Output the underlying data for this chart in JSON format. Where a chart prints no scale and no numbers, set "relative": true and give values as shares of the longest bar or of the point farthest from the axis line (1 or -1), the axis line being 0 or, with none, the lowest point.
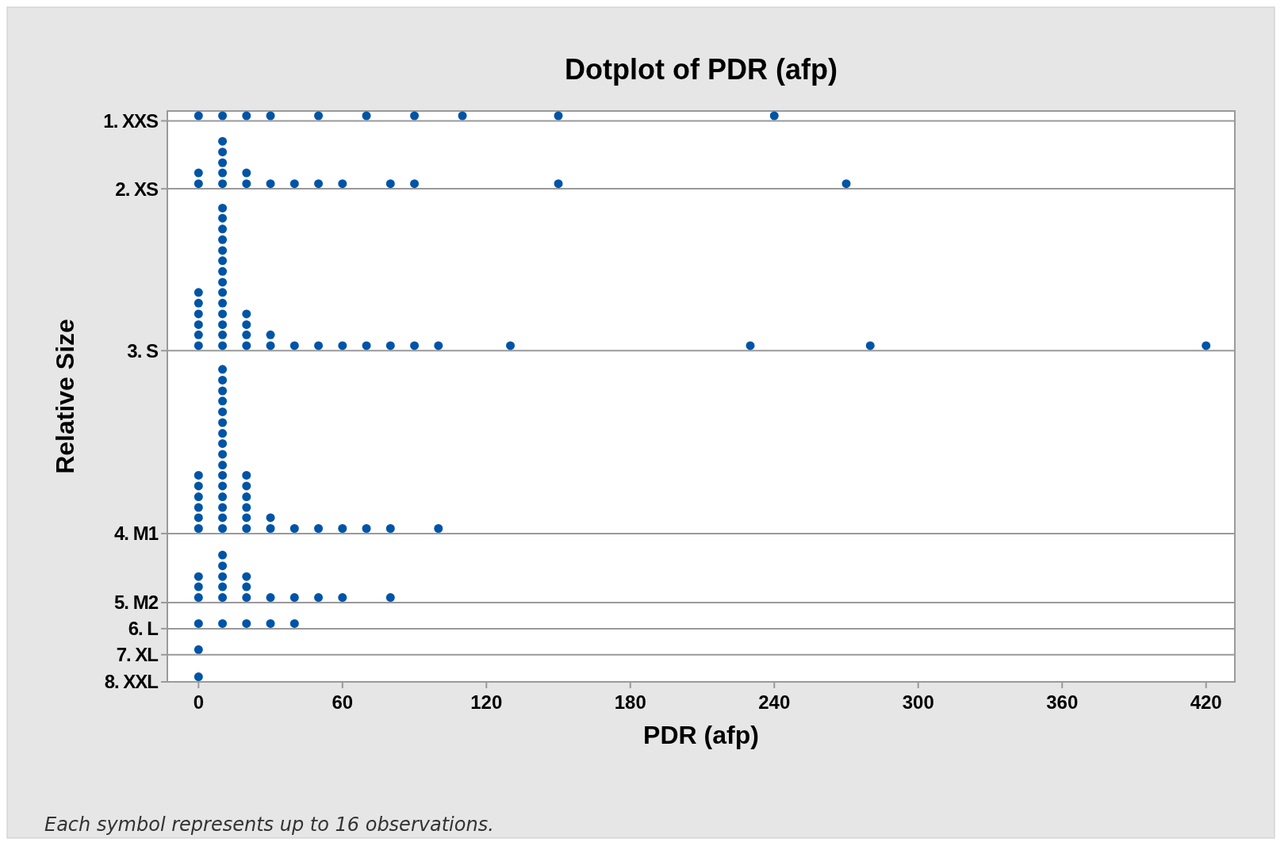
{
  "chart_data": {
    "type": "scatter",
    "relative": true,
    "title": "Dotplot of PDR (afp)",
    "xlabel": "PDR (afp)",
    "ylabel": "Relative Size",
    "xlim": [
      -13,
      432
    ],
    "xticks": [
      0,
      60,
      120,
      180,
      240,
      300,
      360,
      420
    ],
    "marker": "circle",
    "annotations": [
      "Each symbol represents up to 16 observations."
    ],
    "ref_lines": [
      {
        "axis": "y",
        "value": 0.991,
        "label": "1. XXS",
        "color": "#9a9a9a"
      },
      {
        "axis": "y",
        "value": 0.871,
        "label": "2. XS",
        "color": "#9a9a9a"
      },
      {
        "axis": "y",
        "value": 0.585,
        "label": "3. S",
        "color": "#9a9a9a"
      },
      {
        "axis": "y",
        "value": 0.262,
        "label": "4. M1",
        "color": "#9a9a9a"
      },
      {
        "axis": "y",
        "value": 0.14,
        "label": "5. M2",
        "color": "#9a9a9a"
      },
      {
        "axis": "y",
        "value": 0.094,
        "label": "6. L",
        "color": "#9a9a9a"
      },
      {
        "axis": "y",
        "value": 0.048,
        "label": "7. XL",
        "color": "#9a9a9a"
      },
      {
        "axis": "y",
        "value": 0,
        "label": "8. XXL",
        "color": "#9a9a9a"
      }
    ],
    "series": [
      {
        "color": "#0054a6",
        "x": [
          0,
          10,
          20,
          30,
          50,
          70,
          90,
          110,
          150,
          240
        ],
        "values": [
          1,
          1,
          1,
          1,
          1,
          1,
          1,
          1,
          1,
          1
        ]
      },
      {
        "color": "#0054a6",
        "x": [
          0,
          0,
          10,
          10,
          10,
          10,
          10,
          20,
          20,
          30,
          40,
          50,
          60,
          80,
          90,
          150,
          270
        ],
        "values": [
          0.88,
          0.899,
          0.88,
          0.899,
          0.917,
          0.936,
          0.955,
          0.88,
          0.899,
          0.88,
          0.88,
          0.88,
          0.88,
          0.88,
          0.88,
          0.88,
          0.88
        ]
      },
      {
        "color": "#0054a6",
        "x": [
          0,
          0,
          0,
          0,
          0,
          0,
          10,
          10,
          10,
          10,
          10,
          10,
          10,
          10,
          10,
          10,
          10,
          10,
          10,
          10,
          20,
          20,
          20,
          20,
          30,
          30,
          40,
          50,
          60,
          70,
          80,
          90,
          100,
          130,
          230,
          280,
          420
        ],
        "values": [
          0.594,
          0.613,
          0.631,
          0.65,
          0.669,
          0.688,
          0.594,
          0.613,
          0.631,
          0.65,
          0.669,
          0.688,
          0.706,
          0.725,
          0.744,
          0.762,
          0.781,
          0.8,
          0.819,
          0.837,
          0.594,
          0.613,
          0.631,
          0.65,
          0.594,
          0.613,
          0.594,
          0.594,
          0.594,
          0.594,
          0.594,
          0.594,
          0.594,
          0.594,
          0.594,
          0.594,
          0.594
        ]
      },
      {
        "color": "#0054a6",
        "x": [
          0,
          0,
          0,
          0,
          0,
          0,
          10,
          10,
          10,
          10,
          10,
          10,
          10,
          10,
          10,
          10,
          10,
          10,
          10,
          10,
          10,
          10,
          20,
          20,
          20,
          20,
          20,
          20,
          30,
          30,
          40,
          50,
          60,
          70,
          80,
          100
        ],
        "values": [
          0.271,
          0.29,
          0.308,
          0.327,
          0.346,
          0.365,
          0.271,
          0.29,
          0.308,
          0.327,
          0.346,
          0.365,
          0.383,
          0.402,
          0.421,
          0.439,
          0.458,
          0.477,
          0.496,
          0.514,
          0.533,
          0.552,
          0.271,
          0.29,
          0.308,
          0.327,
          0.346,
          0.365,
          0.271,
          0.29,
          0.271,
          0.271,
          0.271,
          0.271,
          0.271,
          0.271
        ]
      },
      {
        "color": "#0054a6",
        "x": [
          0,
          0,
          0,
          10,
          10,
          10,
          10,
          10,
          20,
          20,
          20,
          30,
          40,
          50,
          60,
          80
        ],
        "values": [
          0.149,
          0.168,
          0.186,
          0.149,
          0.168,
          0.186,
          0.205,
          0.224,
          0.149,
          0.168,
          0.186,
          0.149,
          0.149,
          0.149,
          0.149,
          0.149
        ]
      },
      {
        "color": "#0054a6",
        "x": [
          0,
          10,
          20,
          30,
          40
        ],
        "values": [
          0.103,
          0.103,
          0.103,
          0.103,
          0.103
        ]
      },
      {
        "color": "#0054a6",
        "x": [
          0
        ],
        "values": [
          0.057
        ]
      },
      {
        "color": "#0054a6",
        "x": [
          0
        ],
        "values": [
          0.009
        ]
      }
    ]
  }
}
